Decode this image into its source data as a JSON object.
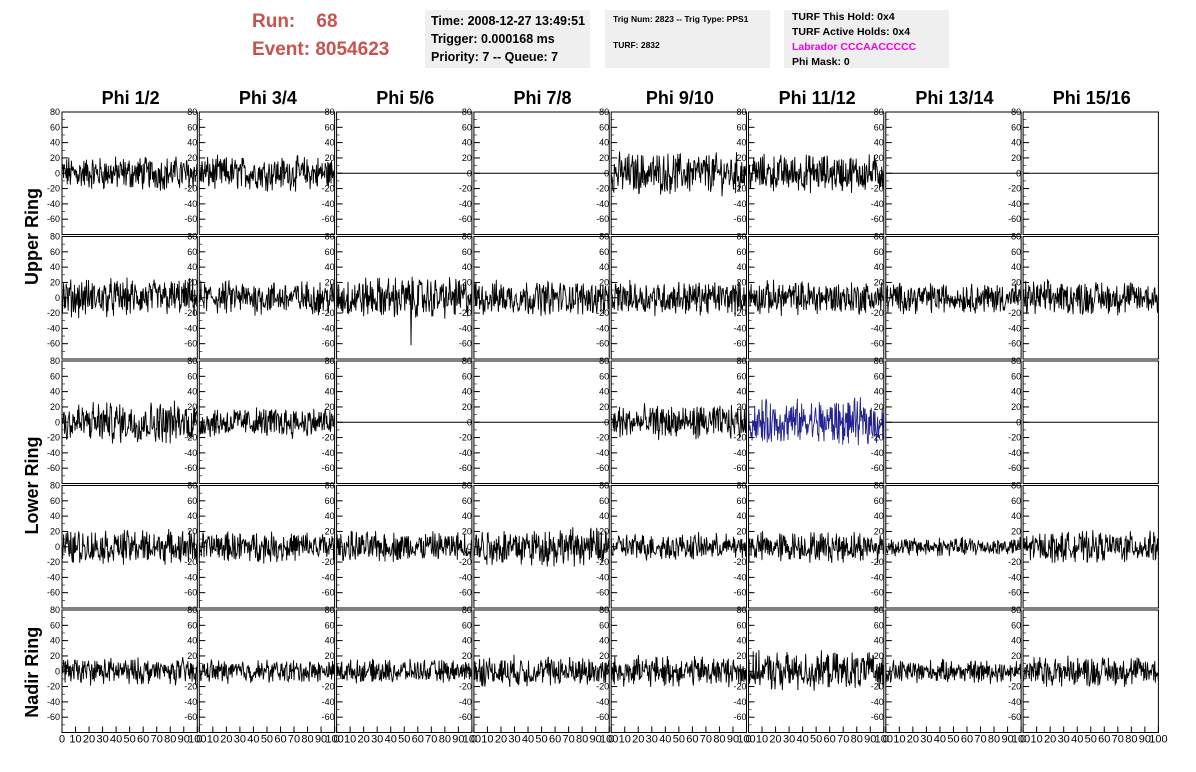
{
  "header": {
    "run_label": "Run:",
    "run_value": "68",
    "event_label": "Event:",
    "event_value": "8054623"
  },
  "panel_time": {
    "time": "Time: 2008-12-27 13:49:51",
    "trigger": "Trigger: 0.000168 ms",
    "priority": "Priority: 7 -- Queue: 7"
  },
  "panel_trig": {
    "trig": "Trig Num: 2823 -- Trig Type: PPS1",
    "turf": "TURF: 2832"
  },
  "panel_turf": {
    "hold": "TURF This Hold: 0x4",
    "active": "TURF Active Holds: 0x4",
    "labrador": "Labrador CCCAACCCCC",
    "phimask": "Phi Mask: 0"
  },
  "colors": {
    "trace": "#000000",
    "highlight_trace": "#23238e",
    "header_red": "#c8524e",
    "magenta": "#ee00ee",
    "panel_bg": "#efefef"
  },
  "chart_data": {
    "type": "line",
    "description_of_grid": "5 rows x 8 columns of waveform subplots",
    "columns": [
      "Phi 1/2",
      "Phi 3/4",
      "Phi 5/6",
      "Phi 7/8",
      "Phi 9/10",
      "Phi 11/12",
      "Phi 13/14",
      "Phi 15/16"
    ],
    "ring_labels": [
      {
        "label": "Upper Ring",
        "rows": [
          0,
          1
        ]
      },
      {
        "label": "Lower Ring",
        "rows": [
          2,
          3
        ]
      },
      {
        "label": "Nadir Ring",
        "rows": [
          4
        ]
      }
    ],
    "ylim": [
      -80,
      80
    ],
    "yticks": [
      -60,
      -40,
      -20,
      0,
      20,
      40,
      60,
      80
    ],
    "xlim": [
      0,
      100
    ],
    "xticks": [
      0,
      10,
      20,
      30,
      40,
      50,
      60,
      70,
      80,
      90,
      100
    ],
    "x_tick_labels": [
      "0",
      "10",
      "20",
      "30",
      "40",
      "50",
      "60",
      "70",
      "80",
      "90",
      "100"
    ],
    "grid": false,
    "traces": [
      {
        "row": 0,
        "col": 0,
        "kind": "noise",
        "amplitude": 18,
        "highlight": false
      },
      {
        "row": 0,
        "col": 1,
        "kind": "noise",
        "amplitude": 18,
        "highlight": false
      },
      {
        "row": 0,
        "col": 2,
        "kind": "flat",
        "amplitude": 0,
        "highlight": false
      },
      {
        "row": 0,
        "col": 3,
        "kind": "flat",
        "amplitude": 0,
        "highlight": false
      },
      {
        "row": 0,
        "col": 4,
        "kind": "noise",
        "amplitude": 22,
        "highlight": false
      },
      {
        "row": 0,
        "col": 5,
        "kind": "noise",
        "amplitude": 20,
        "highlight": false
      },
      {
        "row": 0,
        "col": 6,
        "kind": "flat",
        "amplitude": 0,
        "highlight": false
      },
      {
        "row": 0,
        "col": 7,
        "kind": "flat",
        "amplitude": 0,
        "highlight": false
      },
      {
        "row": 1,
        "col": 0,
        "kind": "noise",
        "amplitude": 20,
        "highlight": false
      },
      {
        "row": 1,
        "col": 1,
        "kind": "noise",
        "amplitude": 18,
        "highlight": false
      },
      {
        "row": 1,
        "col": 2,
        "kind": "noise",
        "amplitude": 22,
        "highlight": false,
        "spike_at": 55,
        "spike_value": -62
      },
      {
        "row": 1,
        "col": 3,
        "kind": "noise",
        "amplitude": 18,
        "highlight": false
      },
      {
        "row": 1,
        "col": 4,
        "kind": "noise",
        "amplitude": 18,
        "highlight": false
      },
      {
        "row": 1,
        "col": 5,
        "kind": "noise",
        "amplitude": 18,
        "highlight": false
      },
      {
        "row": 1,
        "col": 6,
        "kind": "noise",
        "amplitude": 16,
        "highlight": false
      },
      {
        "row": 1,
        "col": 7,
        "kind": "noise",
        "amplitude": 18,
        "highlight": false
      },
      {
        "row": 2,
        "col": 0,
        "kind": "noise",
        "amplitude": 22,
        "highlight": false
      },
      {
        "row": 2,
        "col": 1,
        "kind": "noise",
        "amplitude": 16,
        "highlight": false
      },
      {
        "row": 2,
        "col": 2,
        "kind": "flat",
        "amplitude": 0,
        "highlight": false
      },
      {
        "row": 2,
        "col": 3,
        "kind": "flat",
        "amplitude": 0,
        "highlight": false
      },
      {
        "row": 2,
        "col": 4,
        "kind": "noise",
        "amplitude": 18,
        "highlight": false
      },
      {
        "row": 2,
        "col": 5,
        "kind": "noise",
        "amplitude": 24,
        "highlight": true
      },
      {
        "row": 2,
        "col": 6,
        "kind": "flat",
        "amplitude": 0,
        "highlight": false
      },
      {
        "row": 2,
        "col": 7,
        "kind": "flat",
        "amplitude": 0,
        "highlight": false
      },
      {
        "row": 3,
        "col": 0,
        "kind": "noise",
        "amplitude": 18,
        "highlight": false
      },
      {
        "row": 3,
        "col": 1,
        "kind": "noise",
        "amplitude": 16,
        "highlight": false
      },
      {
        "row": 3,
        "col": 2,
        "kind": "noise",
        "amplitude": 16,
        "highlight": false
      },
      {
        "row": 3,
        "col": 3,
        "kind": "noise",
        "amplitude": 20,
        "highlight": false
      },
      {
        "row": 3,
        "col": 4,
        "kind": "noise",
        "amplitude": 14,
        "highlight": false
      },
      {
        "row": 3,
        "col": 5,
        "kind": "noise",
        "amplitude": 16,
        "highlight": false
      },
      {
        "row": 3,
        "col": 6,
        "kind": "noise",
        "amplitude": 10,
        "highlight": false
      },
      {
        "row": 3,
        "col": 7,
        "kind": "noise",
        "amplitude": 16,
        "highlight": false
      },
      {
        "row": 4,
        "col": 0,
        "kind": "noise",
        "amplitude": 14,
        "highlight": false
      },
      {
        "row": 4,
        "col": 1,
        "kind": "noise",
        "amplitude": 12,
        "highlight": false
      },
      {
        "row": 4,
        "col": 2,
        "kind": "noise",
        "amplitude": 12,
        "highlight": false
      },
      {
        "row": 4,
        "col": 3,
        "kind": "noise",
        "amplitude": 16,
        "highlight": false
      },
      {
        "row": 4,
        "col": 4,
        "kind": "noise",
        "amplitude": 16,
        "highlight": false
      },
      {
        "row": 4,
        "col": 5,
        "kind": "noise",
        "amplitude": 20,
        "highlight": false
      },
      {
        "row": 4,
        "col": 6,
        "kind": "noise",
        "amplitude": 12,
        "highlight": false
      },
      {
        "row": 4,
        "col": 7,
        "kind": "noise",
        "amplitude": 16,
        "highlight": false
      }
    ]
  }
}
